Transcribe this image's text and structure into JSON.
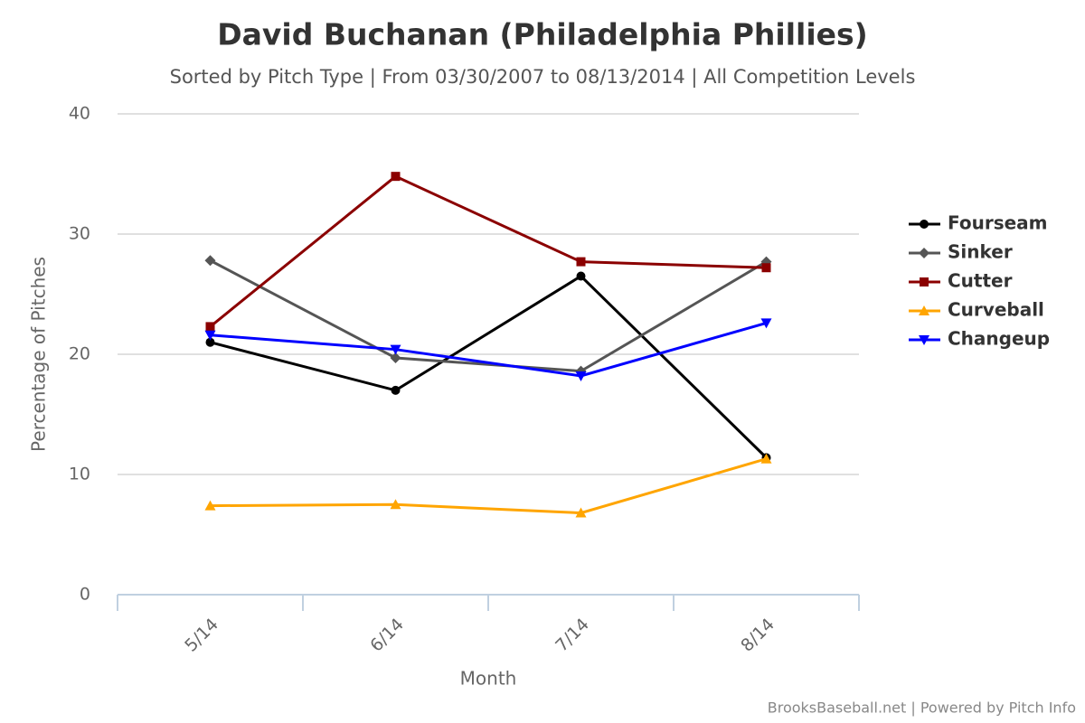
{
  "chart_data": {
    "type": "line",
    "title": "David Buchanan (Philadelphia Phillies)",
    "subtitle": "Sorted by Pitch Type | From 03/30/2007 to 08/13/2014 | All Competition Levels",
    "x_label": "Month",
    "y_label": "Percentage of Pitches",
    "credits": "BrooksBaseball.net | Powered by Pitch Info",
    "categories": [
      "5/14",
      "6/14",
      "7/14",
      "8/14"
    ],
    "ylim": [
      0,
      40
    ],
    "yticks": [
      0,
      10,
      20,
      30,
      40
    ],
    "grid": true,
    "legend": "right",
    "series": [
      {
        "name": "Fourseam",
        "color": "#000000",
        "marker": "circle",
        "values": [
          21.0,
          17.0,
          26.5,
          11.4
        ]
      },
      {
        "name": "Sinker",
        "color": "#555555",
        "marker": "diamond",
        "values": [
          27.8,
          19.7,
          18.6,
          27.7
        ]
      },
      {
        "name": "Cutter",
        "color": "#8b0000",
        "marker": "square",
        "values": [
          22.3,
          34.8,
          27.7,
          27.2
        ]
      },
      {
        "name": "Curveball",
        "color": "#ffa500",
        "marker": "triangle",
        "values": [
          7.4,
          7.5,
          6.8,
          11.3
        ]
      },
      {
        "name": "Changeup",
        "color": "#0000ff",
        "marker": "triangle-down",
        "values": [
          21.6,
          20.4,
          18.2,
          22.6
        ]
      }
    ]
  }
}
